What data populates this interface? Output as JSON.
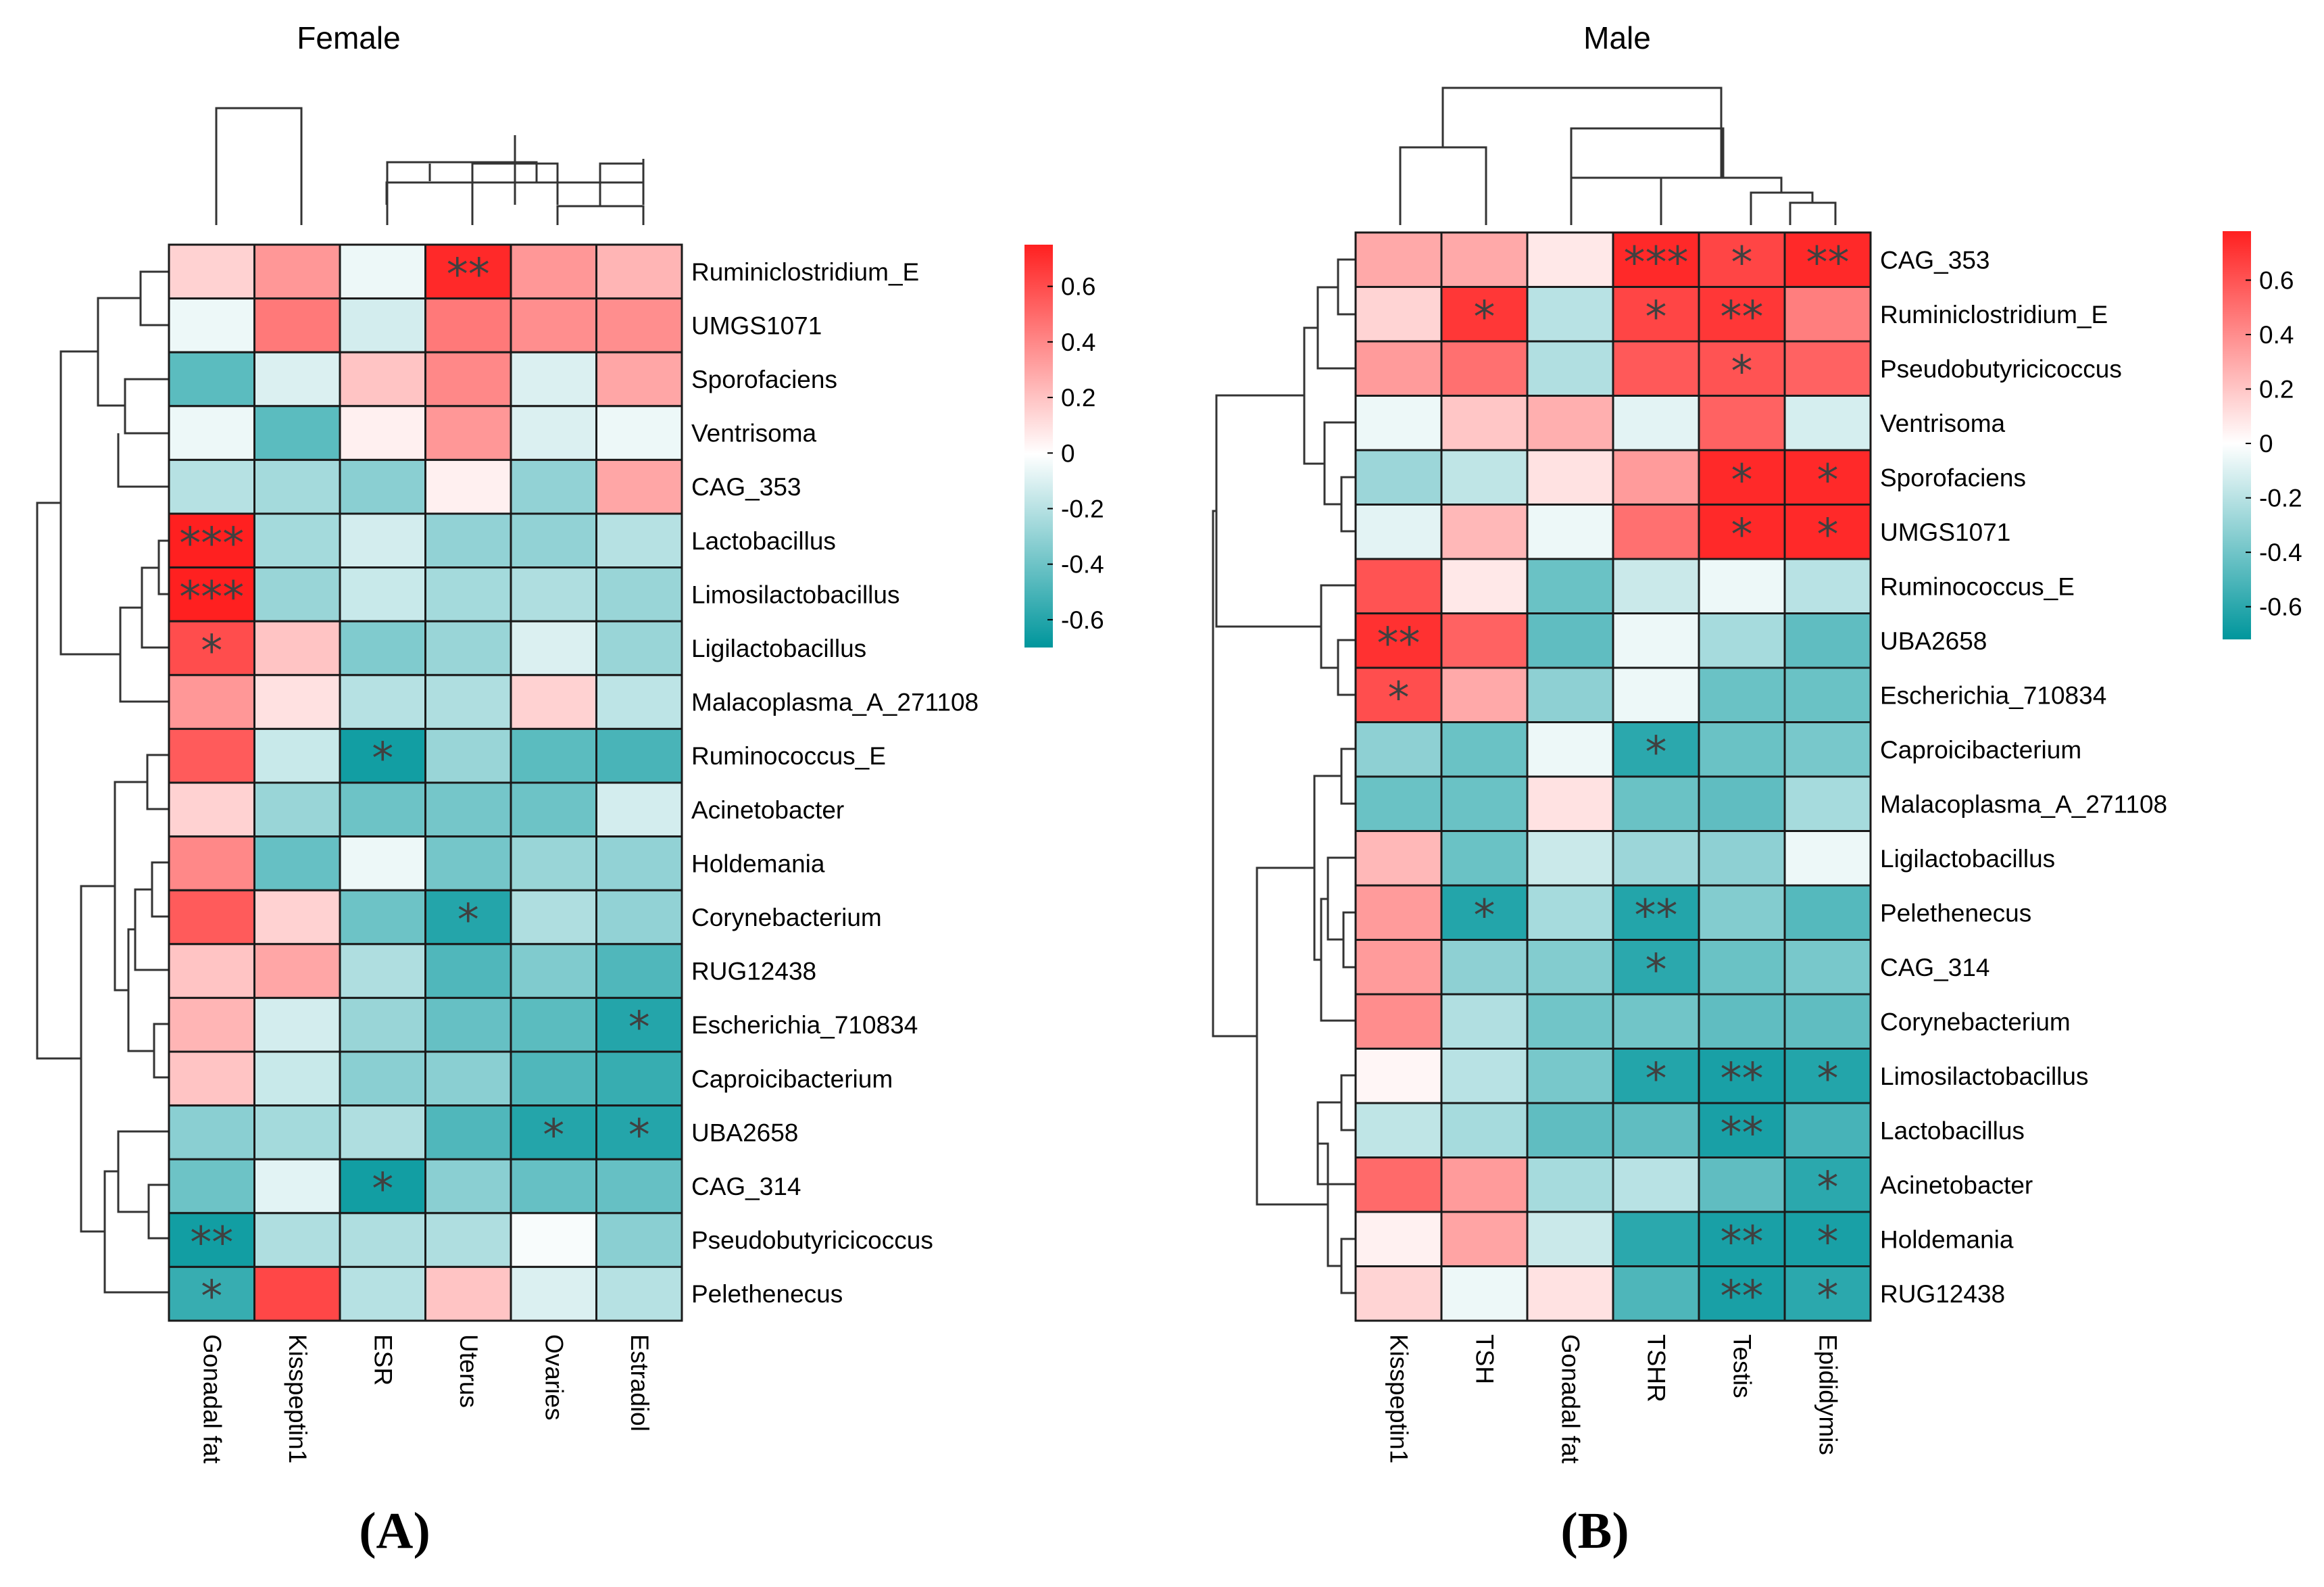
{
  "chart_data": [
    {
      "type": "heatmap",
      "panel_label": "A",
      "title": "Female",
      "columns": [
        "Gonadal fat",
        "Kisspeptin1",
        "ESR",
        "Uterus",
        "Ovaries",
        "Estradiol"
      ],
      "rows": [
        "Ruminiclostridium_E",
        "UMGS1071",
        "Sporofaciens",
        "Ventrisoma",
        "CAG_353",
        "Lactobacillus",
        "Limosilactobacillus",
        "Ligilactobacillus",
        "Malacoplasma_A_271108",
        "Ruminococcus_E",
        "Acinetobacter",
        "Holdemania",
        "Corynebacterium",
        "RUG12438",
        "Escherichia_710834",
        "Caproicibacterium",
        "UBA2658",
        "CAG_314",
        "Pseudobutyricicoccus",
        "Pelethenecus"
      ],
      "values": [
        [
          0.15,
          0.35,
          -0.05,
          0.72,
          0.35,
          0.25
        ],
        [
          -0.05,
          0.45,
          -0.12,
          0.45,
          0.38,
          0.38
        ],
        [
          -0.45,
          -0.1,
          0.2,
          0.4,
          -0.1,
          0.3
        ],
        [
          -0.05,
          -0.45,
          0.05,
          0.35,
          -0.1,
          -0.05
        ],
        [
          -0.2,
          -0.25,
          -0.32,
          0.05,
          -0.3,
          0.3
        ],
        [
          0.75,
          -0.25,
          -0.12,
          -0.3,
          -0.3,
          -0.2
        ],
        [
          0.75,
          -0.28,
          -0.15,
          -0.25,
          -0.22,
          -0.28
        ],
        [
          0.6,
          0.2,
          -0.35,
          -0.28,
          -0.1,
          -0.28
        ],
        [
          0.35,
          0.1,
          -0.2,
          -0.22,
          0.15,
          -0.18
        ],
        [
          0.55,
          -0.15,
          -0.65,
          -0.28,
          -0.45,
          -0.5
        ],
        [
          0.15,
          -0.28,
          -0.4,
          -0.38,
          -0.4,
          -0.12
        ],
        [
          0.4,
          -0.42,
          -0.05,
          -0.38,
          -0.28,
          -0.3
        ],
        [
          0.55,
          0.15,
          -0.4,
          -0.6,
          -0.22,
          -0.3
        ],
        [
          0.2,
          0.3,
          -0.22,
          -0.48,
          -0.35,
          -0.48
        ],
        [
          0.25,
          -0.12,
          -0.28,
          -0.42,
          -0.45,
          -0.6
        ],
        [
          0.2,
          -0.15,
          -0.32,
          -0.32,
          -0.48,
          -0.55
        ],
        [
          -0.32,
          -0.25,
          -0.22,
          -0.48,
          -0.6,
          -0.6
        ],
        [
          -0.4,
          -0.08,
          -0.65,
          -0.32,
          -0.42,
          -0.42
        ],
        [
          -0.65,
          -0.22,
          -0.22,
          -0.22,
          -0.02,
          -0.32
        ],
        [
          -0.55,
          0.62,
          -0.2,
          0.2,
          -0.1,
          -0.2
        ]
      ],
      "significance": [
        [
          "",
          "",
          "",
          "**",
          "",
          ""
        ],
        [
          "",
          "",
          "",
          "",
          "",
          ""
        ],
        [
          "",
          "",
          "",
          "",
          "",
          ""
        ],
        [
          "",
          "",
          "",
          "",
          "",
          ""
        ],
        [
          "",
          "",
          "",
          "",
          "",
          ""
        ],
        [
          "***",
          "",
          "",
          "",
          "",
          ""
        ],
        [
          "***",
          "",
          "",
          "",
          "",
          ""
        ],
        [
          "*",
          "",
          "",
          "",
          "",
          ""
        ],
        [
          "",
          "",
          "",
          "",
          "",
          ""
        ],
        [
          "",
          "",
          "*",
          "",
          "",
          ""
        ],
        [
          "",
          "",
          "",
          "",
          "",
          ""
        ],
        [
          "",
          "",
          "",
          "",
          "",
          ""
        ],
        [
          "",
          "",
          "",
          "*",
          "",
          ""
        ],
        [
          "",
          "",
          "",
          "",
          "",
          ""
        ],
        [
          "",
          "",
          "",
          "",
          "",
          "*"
        ],
        [
          "",
          "",
          "",
          "",
          "",
          ""
        ],
        [
          "",
          "",
          "",
          "",
          "*",
          "*"
        ],
        [
          "",
          "",
          "*",
          "",
          "",
          ""
        ],
        [
          "**",
          "",
          "",
          "",
          "",
          ""
        ],
        [
          "*",
          "",
          "",
          "",
          "",
          ""
        ]
      ],
      "legend": {
        "ticks": [
          0.6,
          0.4,
          0.2,
          0,
          -0.2,
          -0.4,
          -0.6
        ],
        "tick_labels": [
          "0.6",
          "0.4",
          "0.2",
          "0",
          "-0.2",
          "-0.4",
          "-0.6"
        ],
        "range": [
          -0.7,
          0.75
        ]
      },
      "colors": {
        "high": "#ff2020",
        "mid": "#ffffff",
        "low": "#00969c"
      }
    },
    {
      "type": "heatmap",
      "panel_label": "B",
      "title": "Male",
      "columns": [
        "Kisspeptin1",
        "TSH",
        "Gonadal fat",
        "TSHR",
        "Testis",
        "Epididymis"
      ],
      "rows": [
        "CAG_353",
        "Ruminiclostridium_E",
        "Pseudobutyricicoccus",
        "Ventrisoma",
        "Sporofaciens",
        "UMGS1071",
        "Ruminococcus_E",
        "UBA2658",
        "Escherichia_710834",
        "Caproicibacterium",
        "Malacoplasma_A_271108",
        "Ligilactobacillus",
        "Pelethenecus",
        "CAG_314",
        "Corynebacterium",
        "Limosilactobacillus",
        "Lactobacillus",
        "Acinetobacter",
        "Holdemania",
        "RUG12438"
      ],
      "values": [
        [
          0.3,
          0.3,
          0.08,
          0.75,
          0.65,
          0.75
        ],
        [
          0.15,
          0.7,
          -0.2,
          0.65,
          0.7,
          0.45
        ],
        [
          0.35,
          0.5,
          -0.22,
          0.58,
          0.6,
          0.55
        ],
        [
          -0.05,
          0.2,
          0.28,
          -0.08,
          0.55,
          -0.12
        ],
        [
          -0.28,
          -0.18,
          0.1,
          0.35,
          0.75,
          0.75
        ],
        [
          -0.08,
          0.25,
          -0.05,
          0.5,
          0.75,
          0.75
        ],
        [
          0.6,
          0.08,
          -0.42,
          -0.15,
          -0.05,
          -0.2
        ],
        [
          0.72,
          0.55,
          -0.45,
          -0.05,
          -0.25,
          -0.45
        ],
        [
          0.62,
          0.3,
          -0.32,
          -0.05,
          -0.42,
          -0.42
        ],
        [
          -0.32,
          -0.42,
          -0.05,
          -0.6,
          -0.42,
          -0.38
        ],
        [
          -0.42,
          -0.42,
          0.1,
          -0.42,
          -0.45,
          -0.25
        ],
        [
          0.25,
          -0.42,
          -0.15,
          -0.28,
          -0.32,
          -0.05
        ],
        [
          0.35,
          -0.62,
          -0.25,
          -0.62,
          -0.35,
          -0.48
        ],
        [
          0.35,
          -0.32,
          -0.35,
          -0.6,
          -0.42,
          -0.38
        ],
        [
          0.4,
          -0.22,
          -0.4,
          -0.4,
          -0.45,
          -0.45
        ],
        [
          0.03,
          -0.2,
          -0.38,
          -0.62,
          -0.65,
          -0.62
        ],
        [
          -0.18,
          -0.25,
          -0.45,
          -0.45,
          -0.65,
          -0.52
        ],
        [
          0.52,
          0.35,
          -0.25,
          -0.2,
          -0.45,
          -0.6
        ],
        [
          0.05,
          0.32,
          -0.15,
          -0.6,
          -0.65,
          -0.65
        ],
        [
          0.15,
          -0.05,
          0.1,
          -0.5,
          -0.65,
          -0.6
        ]
      ],
      "significance": [
        [
          "",
          "",
          "",
          "***",
          "*",
          "**"
        ],
        [
          "",
          "*",
          "",
          "*",
          "**",
          ""
        ],
        [
          "",
          "",
          "",
          "",
          "*",
          ""
        ],
        [
          "",
          "",
          "",
          "",
          "",
          ""
        ],
        [
          "",
          "",
          "",
          "",
          "*",
          "*"
        ],
        [
          "",
          "",
          "",
          "",
          "*",
          "*"
        ],
        [
          "",
          "",
          "",
          "",
          "",
          ""
        ],
        [
          "**",
          "",
          "",
          "",
          "",
          ""
        ],
        [
          "*",
          "",
          "",
          "",
          "",
          ""
        ],
        [
          "",
          "",
          "",
          "*",
          "",
          ""
        ],
        [
          "",
          "",
          "",
          "",
          "",
          ""
        ],
        [
          "",
          "",
          "",
          "",
          "",
          ""
        ],
        [
          "",
          "*",
          "",
          "**",
          "",
          ""
        ],
        [
          "",
          "",
          "",
          "*",
          "",
          ""
        ],
        [
          "",
          "",
          "",
          "",
          "",
          ""
        ],
        [
          "",
          "",
          "",
          "*",
          "**",
          "*"
        ],
        [
          "",
          "",
          "",
          "",
          "**",
          ""
        ],
        [
          "",
          "",
          "",
          "",
          "",
          "*"
        ],
        [
          "",
          "",
          "",
          "",
          "**",
          "*"
        ],
        [
          "",
          "",
          "",
          "",
          "**",
          "*"
        ]
      ],
      "legend": {
        "ticks": [
          0.6,
          0.4,
          0.2,
          0,
          -0.2,
          -0.4,
          -0.6
        ],
        "tick_labels": [
          "0.6",
          "0.4",
          "0.2",
          "0",
          "-0.2",
          "-0.4",
          "-0.6"
        ],
        "range": [
          -0.72,
          0.78
        ]
      },
      "colors": {
        "high": "#ff2020",
        "mid": "#ffffff",
        "low": "#00969c"
      }
    }
  ]
}
